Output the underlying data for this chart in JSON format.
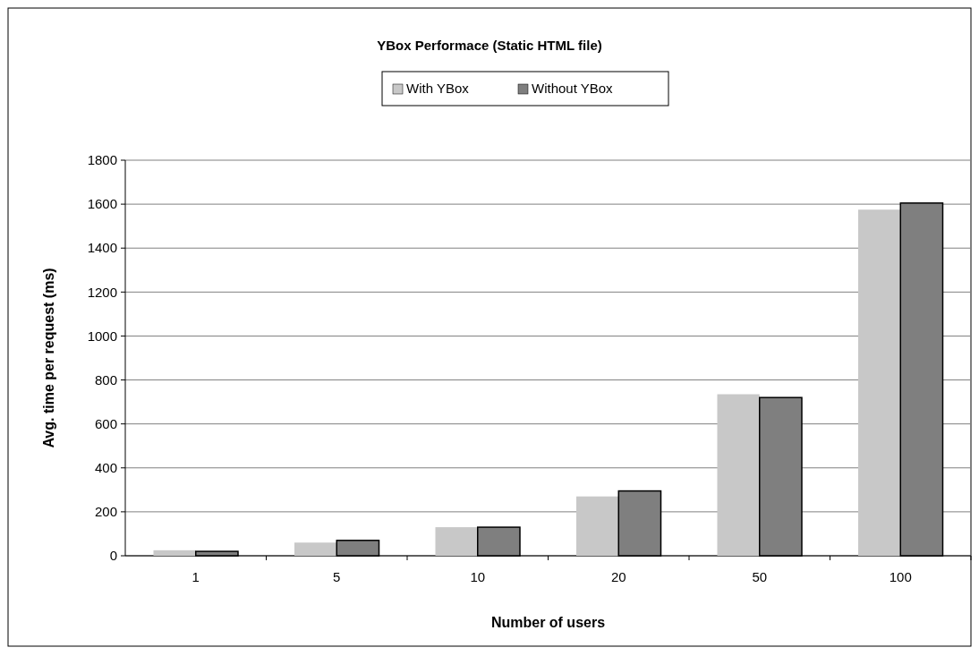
{
  "chart_data": {
    "type": "bar",
    "title": "YBox Performace (Static HTML file)",
    "xlabel": "Number of users",
    "ylabel": "Avg. time per request (ms)",
    "categories": [
      "1",
      "5",
      "10",
      "20",
      "50",
      "100"
    ],
    "series": [
      {
        "name": "With YBox",
        "color": "#c8c8c8",
        "values": [
          25,
          60,
          130,
          270,
          735,
          1575
        ]
      },
      {
        "name": "Without YBox",
        "color": "#7f7f7f",
        "values": [
          20,
          70,
          130,
          295,
          720,
          1605
        ]
      }
    ],
    "ylim": [
      0,
      1800
    ],
    "yticks": [
      0,
      200,
      400,
      600,
      800,
      1000,
      1200,
      1400,
      1600,
      1800
    ],
    "grid": "y",
    "legend": "top"
  }
}
